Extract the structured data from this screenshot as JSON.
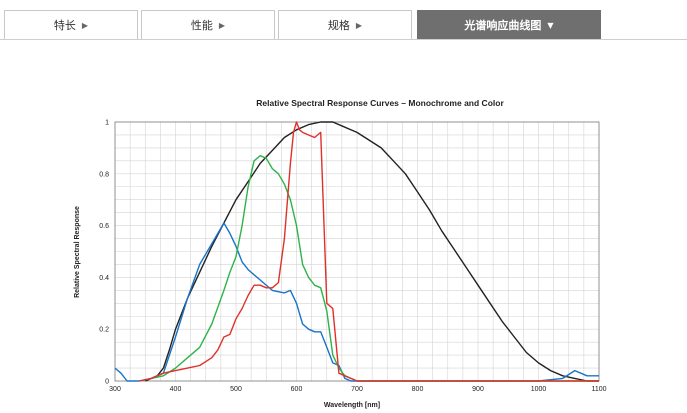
{
  "tabs": [
    {
      "label": "特长",
      "arrow": "▶",
      "active": false
    },
    {
      "label": "性能",
      "arrow": "▶",
      "active": false
    },
    {
      "label": "规格",
      "arrow": "▶",
      "active": false
    },
    {
      "label": "光谱响应曲线图",
      "arrow": "▼",
      "active": true
    }
  ],
  "chart_data": {
    "type": "line",
    "title": "Relative Spectral Response Curves – Monochrome and Color",
    "xlabel": "Wavelength [nm]",
    "ylabel": "Relative Spectral Response",
    "xlim": [
      300,
      1100
    ],
    "ylim": [
      0,
      1
    ],
    "xticks": [
      300,
      400,
      500,
      600,
      700,
      800,
      900,
      1000,
      1100
    ],
    "yticks": [
      0,
      0.2,
      0.4,
      0.6,
      0.8,
      1
    ],
    "ytick_labels": [
      "0",
      "0.2",
      "0.4",
      "0.6",
      "0.8",
      "1"
    ],
    "grid": true,
    "series": [
      {
        "color": "#222222",
        "x": [
          350,
          370,
          380,
          390,
          400,
          420,
          440,
          460,
          480,
          500,
          520,
          540,
          560,
          580,
          600,
          620,
          640,
          660,
          680,
          700,
          720,
          740,
          760,
          780,
          800,
          820,
          840,
          860,
          880,
          900,
          920,
          940,
          960,
          980,
          1000,
          1020,
          1040,
          1060,
          1080,
          1100
        ],
        "y": [
          0,
          0.02,
          0.05,
          0.12,
          0.2,
          0.32,
          0.42,
          0.52,
          0.61,
          0.7,
          0.77,
          0.84,
          0.89,
          0.94,
          0.97,
          0.99,
          1.0,
          1.0,
          0.98,
          0.96,
          0.93,
          0.9,
          0.85,
          0.8,
          0.73,
          0.66,
          0.58,
          0.51,
          0.44,
          0.37,
          0.3,
          0.23,
          0.17,
          0.11,
          0.07,
          0.04,
          0.02,
          0.01,
          0.0,
          0.0
        ]
      },
      {
        "color": "#1a73c8",
        "x": [
          300,
          310,
          320,
          340,
          360,
          380,
          400,
          420,
          440,
          460,
          480,
          490,
          500,
          510,
          520,
          540,
          560,
          580,
          590,
          600,
          610,
          620,
          630,
          640,
          650,
          660,
          670,
          680,
          690,
          700,
          750,
          800,
          900,
          1000,
          1040,
          1060,
          1070,
          1080,
          1100
        ],
        "y": [
          0.05,
          0.03,
          0.0,
          0.0,
          0.01,
          0.03,
          0.17,
          0.32,
          0.45,
          0.53,
          0.61,
          0.57,
          0.52,
          0.46,
          0.43,
          0.39,
          0.35,
          0.34,
          0.35,
          0.3,
          0.22,
          0.2,
          0.19,
          0.19,
          0.13,
          0.07,
          0.06,
          0.01,
          0.0,
          0.0,
          0.0,
          0.0,
          0.0,
          0.0,
          0.01,
          0.04,
          0.03,
          0.02,
          0.02
        ]
      },
      {
        "color": "#2eb34a",
        "x": [
          340,
          360,
          380,
          400,
          420,
          440,
          460,
          480,
          490,
          500,
          510,
          520,
          530,
          540,
          550,
          560,
          570,
          580,
          590,
          600,
          610,
          620,
          630,
          640,
          650,
          660,
          670,
          680,
          690,
          700,
          750,
          800,
          900,
          1000,
          1100
        ],
        "y": [
          0.0,
          0.01,
          0.02,
          0.05,
          0.09,
          0.13,
          0.22,
          0.35,
          0.42,
          0.48,
          0.6,
          0.75,
          0.85,
          0.87,
          0.86,
          0.82,
          0.8,
          0.76,
          0.7,
          0.6,
          0.45,
          0.4,
          0.37,
          0.36,
          0.27,
          0.1,
          0.05,
          0.02,
          0.01,
          0.0,
          0.0,
          0.0,
          0.0,
          0.0,
          0.0
        ]
      },
      {
        "color": "#e0302a",
        "x": [
          340,
          360,
          380,
          400,
          420,
          440,
          460,
          470,
          480,
          490,
          500,
          510,
          520,
          530,
          540,
          550,
          560,
          570,
          580,
          590,
          595,
          600,
          605,
          610,
          620,
          630,
          640,
          650,
          660,
          670,
          680,
          690,
          700,
          750,
          800,
          900,
          1000,
          1100
        ],
        "y": [
          0.0,
          0.01,
          0.03,
          0.04,
          0.05,
          0.06,
          0.09,
          0.12,
          0.17,
          0.18,
          0.24,
          0.28,
          0.33,
          0.37,
          0.37,
          0.36,
          0.36,
          0.38,
          0.55,
          0.84,
          0.96,
          1.0,
          0.97,
          0.96,
          0.95,
          0.94,
          0.96,
          0.3,
          0.28,
          0.03,
          0.02,
          0.01,
          0.0,
          0.0,
          0.0,
          0.0,
          0.0,
          0.0
        ]
      }
    ]
  }
}
